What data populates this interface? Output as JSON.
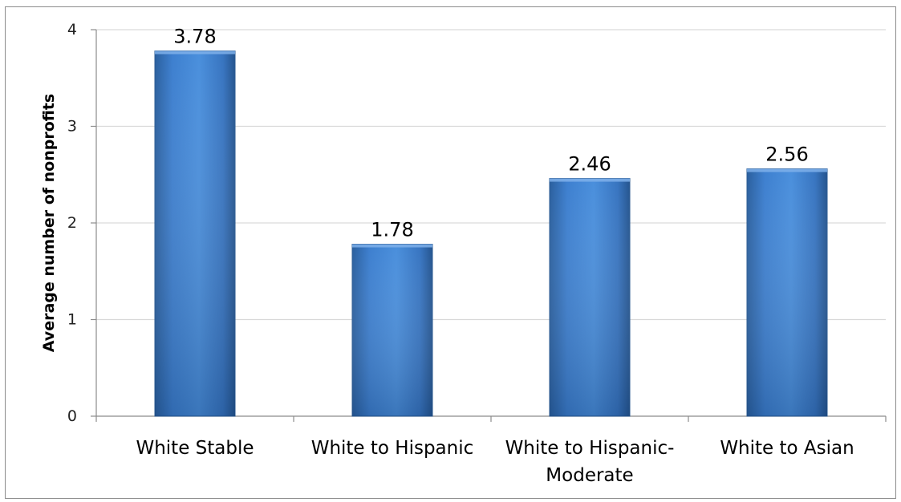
{
  "chart_data": {
    "type": "bar",
    "title": "",
    "xlabel": "",
    "ylabel": "Average number of nonprofits",
    "categories": [
      "White Stable",
      "White to Hispanic",
      "White to Hispanic-Moderate",
      "White to Asian"
    ],
    "category_lines": [
      [
        "White Stable"
      ],
      [
        "White to Hispanic"
      ],
      [
        "White to Hispanic-",
        "Moderate"
      ],
      [
        "White to Asian"
      ]
    ],
    "values": [
      3.78,
      1.78,
      2.46,
      2.56
    ],
    "data_labels": [
      "3.78",
      "1.78",
      "2.46",
      "2.56"
    ],
    "ylim": [
      0,
      4
    ],
    "yticks": [
      0,
      1,
      2,
      3,
      4
    ],
    "ytick_labels": [
      "0",
      "1",
      "2",
      "3",
      "4"
    ],
    "grid": true,
    "legend": "none",
    "bar_color": "#3f7fcf"
  }
}
